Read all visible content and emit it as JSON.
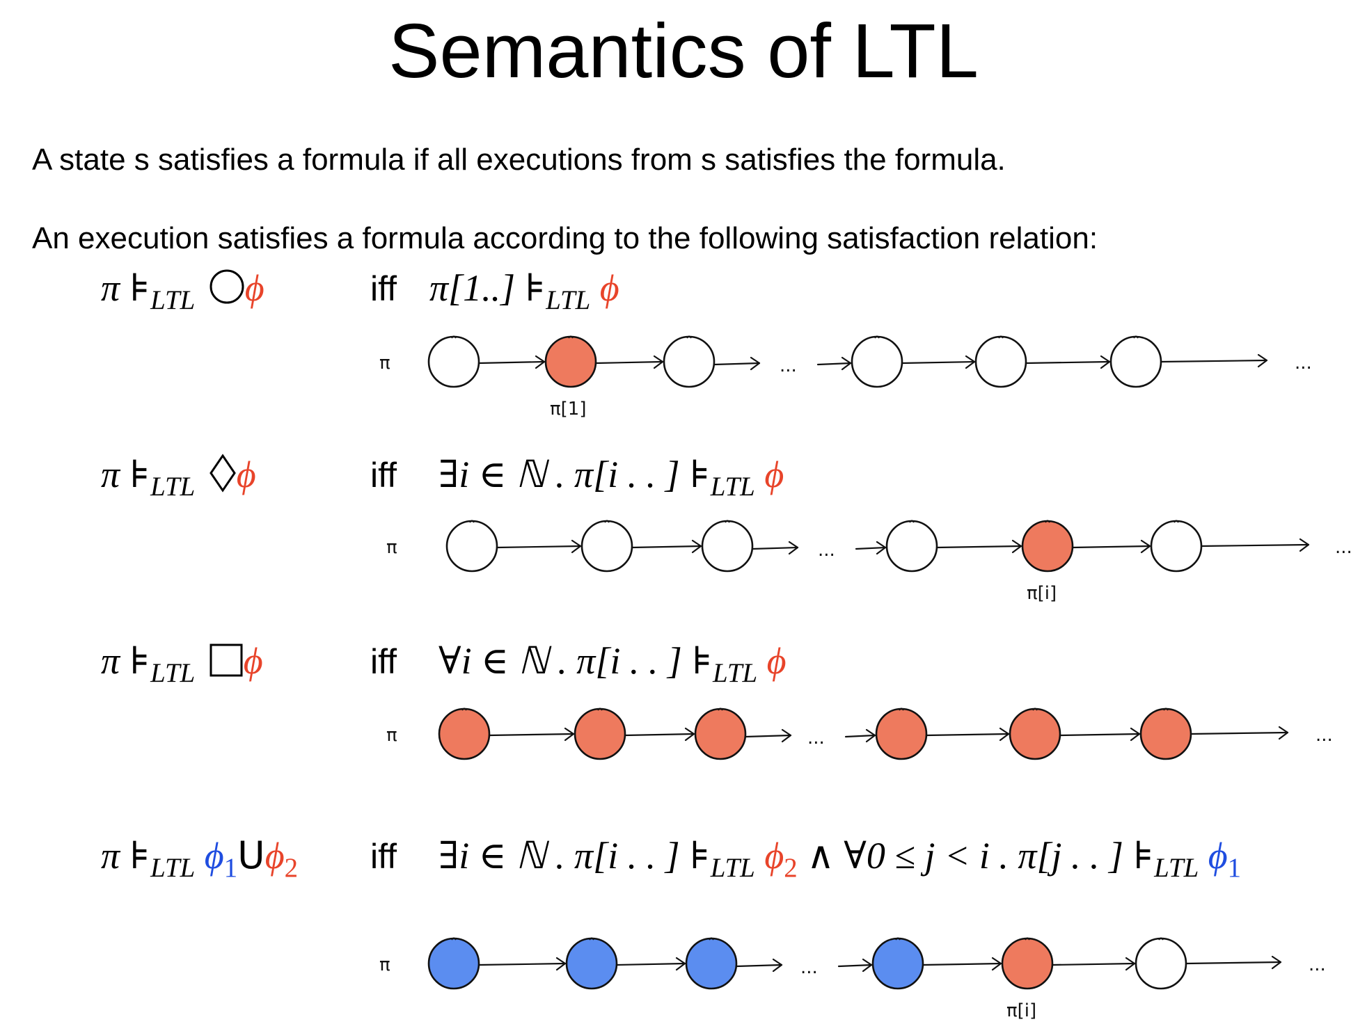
{
  "title": "Semantics of LTL",
  "para1": "A state s satisfies a formula if all executions from s satisfies the formula.",
  "para2": "An execution satisfies a formula according to the following satisfaction relation:",
  "iff_word": "iff",
  "colors": {
    "red": "#ee7a5e",
    "blue": "#5b8df0",
    "white": "#ffffff",
    "formula_red": "#e8442a",
    "formula_blue": "#1f4de0"
  },
  "rules": [
    {
      "operator_icon": "next-circle-icon",
      "lhs_prefix": "π ⊧",
      "ltl_sub": "LTL",
      "phi": "ϕ",
      "rhs": {
        "before": "π[1..] ⊧",
        "sub": "LTL",
        "phi": "ϕ"
      },
      "diagram": {
        "pi_label": "π",
        "states": [
          "white",
          "red",
          "white",
          "white",
          "white",
          "white"
        ],
        "marker_label": "π[1]",
        "marker_index": 1,
        "ellipsis": "..."
      }
    },
    {
      "operator_icon": "eventually-diamond-icon",
      "lhs_prefix": "π ⊧",
      "ltl_sub": "LTL",
      "phi": "ϕ",
      "rhs": {
        "before": "∃i ∈ ℕ . π[i . . ] ⊧",
        "sub": "LTL",
        "phi": "ϕ"
      },
      "diagram": {
        "pi_label": "π",
        "states": [
          "white",
          "white",
          "white",
          "white",
          "red",
          "white"
        ],
        "marker_label": "π[i]",
        "marker_index": 4,
        "ellipsis": "..."
      }
    },
    {
      "operator_icon": "globally-square-icon",
      "lhs_prefix": "π ⊧",
      "ltl_sub": "LTL",
      "phi": "ϕ",
      "rhs": {
        "before": "∀i ∈ ℕ . π[i . . ] ⊧",
        "sub": "LTL",
        "phi": "ϕ"
      },
      "diagram": {
        "pi_label": "π",
        "states": [
          "red",
          "red",
          "red",
          "red",
          "red",
          "red"
        ],
        "marker_label": "",
        "marker_index": -1,
        "ellipsis": "..."
      }
    },
    {
      "operator_icon": "until-icon",
      "lhs_prefix": "π ⊧",
      "ltl_sub": "LTL",
      "phi1": "ϕ",
      "one": "1",
      "until": "U",
      "phi2": "ϕ",
      "two": "2",
      "rhs": {
        "part1": "∃i ∈ ℕ . π[i . . ] ⊧",
        "sub1": "LTL",
        "phi2": "ϕ",
        "two": "2",
        "part2": " ∧ ∀0 ≤ j < i . π[j . . ] ⊧",
        "sub2": "LTL",
        "phi1": "ϕ",
        "one": "1"
      },
      "diagram": {
        "pi_label": "π",
        "states": [
          "blue",
          "blue",
          "blue",
          "blue",
          "red",
          "white"
        ],
        "marker_label": "π[i]",
        "marker_index": 4,
        "ellipsis": "..."
      }
    }
  ]
}
